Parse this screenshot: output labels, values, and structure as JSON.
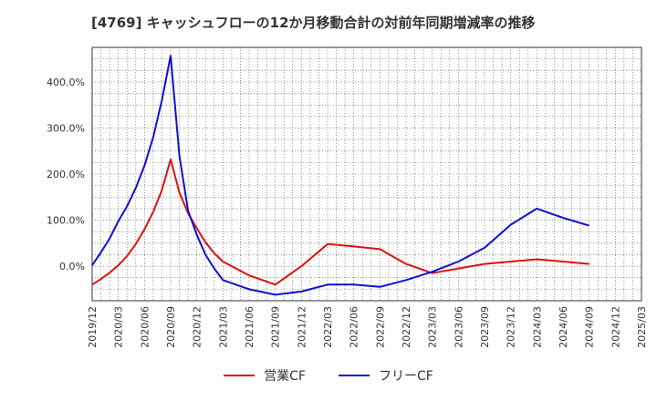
{
  "colors": {
    "series_0": "#e01010",
    "series_1": "#1010d0",
    "grid": "#333333",
    "axis_text": "#333333"
  },
  "chart_data": {
    "type": "line",
    "title": "[4769]  キャッシュフローの12か月移動合計の対前年同期増減率の推移",
    "xlabel": "",
    "ylabel": "",
    "x_tick_labels": [
      "2019/12",
      "2020/03",
      "2020/06",
      "2020/09",
      "2020/12",
      "2021/03",
      "2021/06",
      "2021/09",
      "2021/12",
      "2022/03",
      "2022/06",
      "2022/09",
      "2022/12",
      "2023/03",
      "2023/06",
      "2023/09",
      "2023/12",
      "2024/03",
      "2024/06",
      "2024/09",
      "2024/12",
      "2025/03"
    ],
    "y_tick_labels": [
      "0.0%",
      "100.0%",
      "200.0%",
      "300.0%",
      "400.0%"
    ],
    "y_ticks": [
      0,
      100,
      200,
      300,
      400
    ],
    "ylim": [
      -75,
      475
    ],
    "x_range": [
      "2019/12",
      "2025/03"
    ],
    "grid": true,
    "legend_position": "bottom",
    "series": [
      {
        "name": "営業CF",
        "x": [
          "2019/12",
          "2020/01",
          "2020/02",
          "2020/03",
          "2020/04",
          "2020/05",
          "2020/06",
          "2020/07",
          "2020/08",
          "2020/09",
          "2020/10",
          "2020/11",
          "2020/12",
          "2021/01",
          "2021/02",
          "2021/03",
          "2021/06",
          "2021/09",
          "2021/12",
          "2022/03",
          "2022/06",
          "2022/09",
          "2022/12",
          "2023/03",
          "2023/06",
          "2023/09",
          "2023/12",
          "2024/03",
          "2024/06",
          "2024/09"
        ],
        "values": [
          -40,
          -28,
          -14,
          2,
          22,
          48,
          80,
          118,
          165,
          232,
          160,
          115,
          82,
          52,
          28,
          10,
          -20,
          -40,
          0,
          48,
          43,
          37,
          5,
          -15,
          -5,
          5,
          10,
          15,
          10,
          5
        ]
      },
      {
        "name": "フリーCF",
        "x": [
          "2019/12",
          "2020/01",
          "2020/02",
          "2020/03",
          "2020/04",
          "2020/05",
          "2020/06",
          "2020/07",
          "2020/08",
          "2020/09",
          "2020/10",
          "2020/11",
          "2020/12",
          "2021/01",
          "2021/02",
          "2021/03",
          "2021/06",
          "2021/09",
          "2021/12",
          "2022/03",
          "2022/06",
          "2022/09",
          "2022/12",
          "2023/03",
          "2023/06",
          "2023/09",
          "2023/12",
          "2024/03",
          "2024/06",
          "2024/09"
        ],
        "values": [
          2,
          30,
          60,
          98,
          130,
          170,
          218,
          280,
          360,
          457,
          240,
          120,
          68,
          25,
          -5,
          -30,
          -50,
          -62,
          -55,
          -40,
          -40,
          -45,
          -30,
          -12,
          10,
          40,
          90,
          125,
          105,
          88
        ]
      }
    ]
  }
}
